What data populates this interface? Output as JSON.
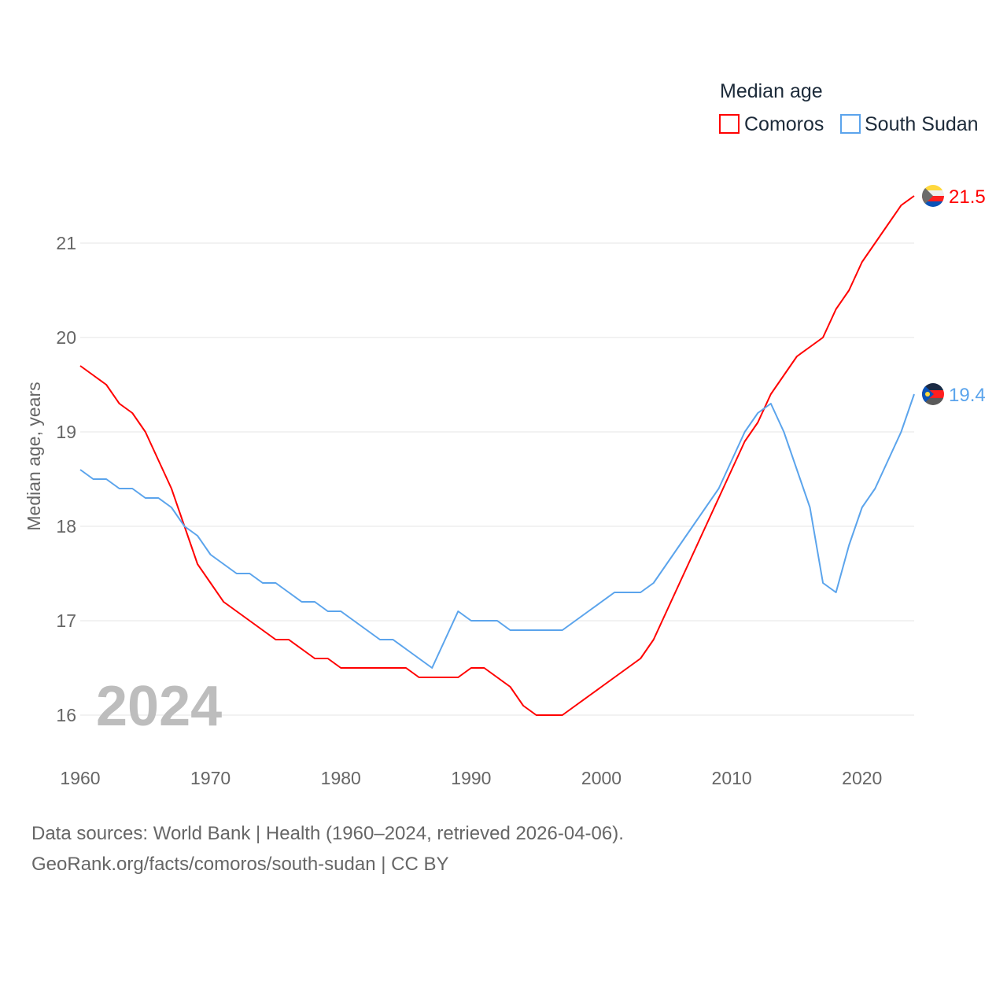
{
  "chart_data": {
    "type": "line",
    "title": "",
    "ylabel": "Median age, years",
    "xlabel": "",
    "ylim": [
      15.6,
      21.8
    ],
    "xlim": [
      1960,
      2024
    ],
    "yticks": [
      16,
      17,
      18,
      19,
      20,
      21
    ],
    "xticks": [
      1960,
      1970,
      1980,
      1990,
      2000,
      2010,
      2020
    ],
    "grid": true,
    "year_watermark": "2024",
    "legend": {
      "title": "Median age",
      "placement": "top-right"
    },
    "x_start": 1960,
    "series": [
      {
        "name": "Comoros",
        "color": "#ff0000",
        "end_label": "21.5",
        "values": [
          19.7,
          19.6,
          19.5,
          19.3,
          19.2,
          19.0,
          18.7,
          18.4,
          18.0,
          17.6,
          17.4,
          17.2,
          17.1,
          17.0,
          16.9,
          16.8,
          16.8,
          16.7,
          16.6,
          16.6,
          16.5,
          16.5,
          16.5,
          16.5,
          16.5,
          16.5,
          16.4,
          16.4,
          16.4,
          16.4,
          16.5,
          16.5,
          16.4,
          16.3,
          16.1,
          16.0,
          16.0,
          16.0,
          16.1,
          16.2,
          16.3,
          16.4,
          16.5,
          16.6,
          16.8,
          17.1,
          17.4,
          17.7,
          18.0,
          18.3,
          18.6,
          18.9,
          19.1,
          19.4,
          19.6,
          19.8,
          19.9,
          20.0,
          20.3,
          20.5,
          20.8,
          21.0,
          21.2,
          21.4,
          21.5
        ]
      },
      {
        "name": "South Sudan",
        "color": "#5ba4ec",
        "end_label": "19.4",
        "values": [
          18.6,
          18.5,
          18.5,
          18.4,
          18.4,
          18.3,
          18.3,
          18.2,
          18.0,
          17.9,
          17.7,
          17.6,
          17.5,
          17.5,
          17.4,
          17.4,
          17.3,
          17.2,
          17.2,
          17.1,
          17.1,
          17.0,
          16.9,
          16.8,
          16.8,
          16.7,
          16.6,
          16.5,
          16.8,
          17.1,
          17.0,
          17.0,
          17.0,
          16.9,
          16.9,
          16.9,
          16.9,
          16.9,
          17.0,
          17.1,
          17.2,
          17.3,
          17.3,
          17.3,
          17.4,
          17.6,
          17.8,
          18.0,
          18.2,
          18.4,
          18.7,
          19.0,
          19.2,
          19.3,
          19.0,
          18.6,
          18.2,
          17.4,
          17.3,
          17.8,
          18.2,
          18.4,
          18.7,
          19.0,
          19.4
        ]
      }
    ]
  },
  "footer": {
    "line1": "Data sources: World Bank | Health (1960–2024, retrieved 2026-04-06).",
    "line2": "GeoRank.org/facts/comoros/south-sudan | CC BY"
  }
}
